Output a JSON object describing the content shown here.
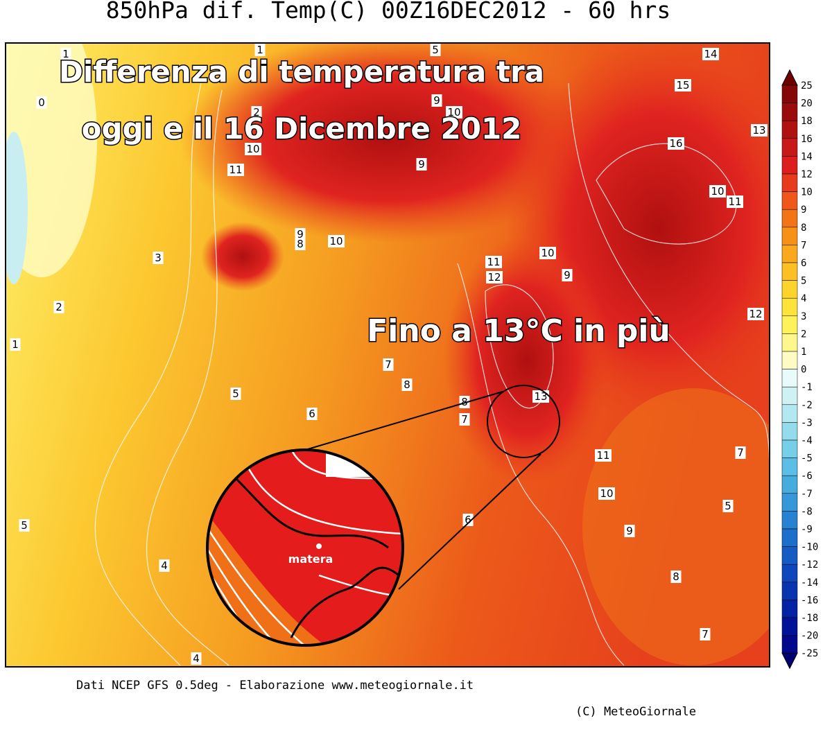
{
  "header": {
    "title": "850hPa dif. Temp(C) 00Z16DEC2012 - 60 hrs"
  },
  "overlay": {
    "headline": [
      "Differenza di temperatura tra",
      "oggi e il 16 Dicembre 2012"
    ],
    "callout": "Fino a 13°C in più",
    "city": "matera"
  },
  "contour_labels": [
    "1",
    "1",
    "5",
    "14",
    "0",
    "2",
    "9",
    "10",
    "15",
    "13",
    "10",
    "16",
    "9",
    "11",
    "10",
    "11",
    "9",
    "8",
    "10",
    "3",
    "10",
    "11",
    "12",
    "9",
    "2",
    "12",
    "1",
    "7",
    "8",
    "5",
    "13",
    "8",
    "6",
    "7",
    "11",
    "7",
    "10",
    "5",
    "6",
    "9",
    "5",
    "4",
    "8",
    "7",
    "4"
  ],
  "colorbar": {
    "labels": [
      "25",
      "20",
      "18",
      "16",
      "14",
      "12",
      "10",
      "9",
      "8",
      "7",
      "6",
      "5",
      "4",
      "3",
      "2",
      "1",
      "0",
      "-1",
      "-2",
      "-3",
      "-4",
      "-5",
      "-6",
      "-7",
      "-8",
      "-9",
      "-10",
      "-12",
      "-14",
      "-16",
      "-18",
      "-20",
      "-25"
    ],
    "colors": [
      "#6e0000",
      "#840808",
      "#9a0c0c",
      "#b01212",
      "#c81818",
      "#dc1e1e",
      "#e83a1c",
      "#ef5818",
      "#f37414",
      "#f79016",
      "#faa81c",
      "#fcc024",
      "#fdd42c",
      "#fee43a",
      "#fef25a",
      "#fef88c",
      "#fefcc4",
      "#e8fafa",
      "#cef2f4",
      "#b2e8f0",
      "#94dcec",
      "#76cee8",
      "#5cbee4",
      "#46acde",
      "#3698d8",
      "#2882d2",
      "#1e6ecc",
      "#165ac4",
      "#0e46bc",
      "#0834b0",
      "#0422a4",
      "#021298",
      "#01088c",
      "#000070"
    ]
  },
  "footer": {
    "source": "Dati NCEP GFS 0.5deg - Elaborazione www.meteogiornale.it",
    "copyright": "(C) MeteoGiornale"
  }
}
